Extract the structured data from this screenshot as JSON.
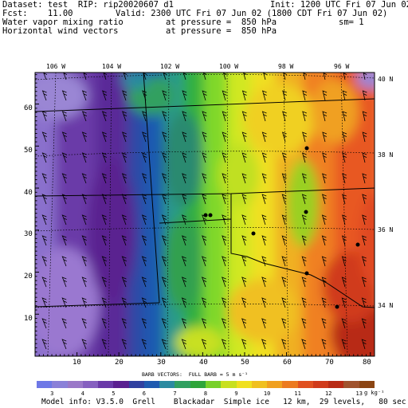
{
  "header": {
    "dataset": "Dataset: test  RIP: rip20020607 d1",
    "init": "Init: 1200 UTC Fri 07 Jun 02",
    "fcst": "Fcst:    11.00",
    "valid": "Valid: 2300 UTC Fri 07 Jun 02 (1800 CDT Fri 07 Jun 02)",
    "field1": "Water vapor mixing ratio",
    "field1_level": "at pressure =  850 hPa",
    "sm": "sm= 1",
    "field2": "Horizontal wind vectors",
    "field2_level": "at pressure =  850 hPa"
  },
  "map": {
    "top_lon_labels": [
      "106 W",
      "104 W",
      "102 W",
      "100 W",
      "98 W",
      "96 W"
    ],
    "right_lat_labels": [
      "40 N",
      "38 N",
      "36 N",
      "34 N"
    ],
    "left_y_ticks": [
      "60",
      "50",
      "40",
      "30",
      "20",
      "10"
    ],
    "bottom_x_ticks": [
      "10",
      "20",
      "30",
      "40",
      "50",
      "60",
      "70",
      "80"
    ]
  },
  "barbs_note": "BARB VECTORS:  FULL BARB = 5 m s⁻¹",
  "colorbar": {
    "labels": [
      "3",
      "4",
      "5",
      "6",
      "7",
      "8",
      "9",
      "10",
      "11",
      "12",
      "13"
    ],
    "unit": "g kg⁻¹",
    "colors": [
      "#6e78e6",
      "#8a80d8",
      "#9a78c8",
      "#8660c0",
      "#6a3aa8",
      "#5a2090",
      "#3040a0",
      "#1e5ab0",
      "#2a8aa0",
      "#30a060",
      "#2ea53a",
      "#78d02a",
      "#c8e020",
      "#f0e020",
      "#f0c020",
      "#f0a020",
      "#ec7a20",
      "#e05020",
      "#d03a1a",
      "#b82a14",
      "#a0522d",
      "#8b4513"
    ]
  },
  "footer": "Model info: V3.5.0  Grell    Blackadar  Simple ice   12 km,  29 levels,   80 sec"
}
